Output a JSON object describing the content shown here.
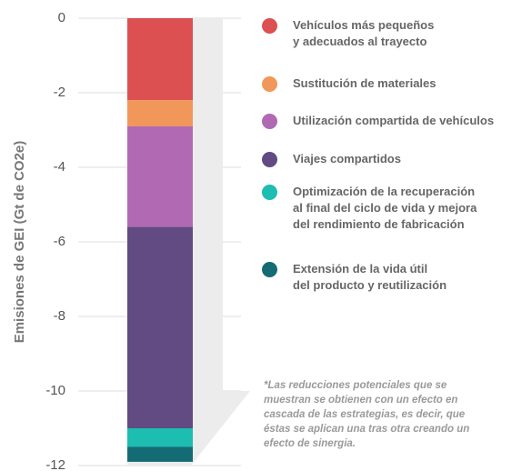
{
  "chart_data": {
    "type": "stacked_bar",
    "y_label": "Emisiones de GEI (Gt de CO2e)",
    "categories": [
      null
    ],
    "series": [
      {
        "name": "Vehículos más pequeños\ny adecuados al trayecto",
        "color": "#dc5052",
        "values": [
          -2.2
        ]
      },
      {
        "name": "Sustitución de materiales",
        "color": "#f2975a",
        "values": [
          -0.7
        ]
      },
      {
        "name": "Utilización compartida de vehículos",
        "color": "#b069b2",
        "values": [
          -2.7
        ]
      },
      {
        "name": "Viajes compartidos",
        "color": "#624a82",
        "values": [
          -5.4
        ]
      },
      {
        "name": "Optimización de la recuperación\nal final del ciclo de vida y mejora\ndel rendimiento de fabricación",
        "color": "#1dbdb1",
        "values": [
          -0.5
        ]
      },
      {
        "name": "Extensión de la vida útil\ndel producto y reutilización",
        "color": "#156b74",
        "values": [
          -0.4
        ]
      }
    ],
    "ylim": [
      -12,
      0
    ],
    "yticks": [
      0,
      -2,
      -4,
      -6,
      -8,
      -10,
      -12
    ],
    "grid": true,
    "annotation": "*Las reducciones potenciales que se\nmuestran se obtienen con un efecto en\ncascada de las estrategias, es decir, que\néstas se aplican una tras otra creando un\nefecto de sinergia."
  }
}
